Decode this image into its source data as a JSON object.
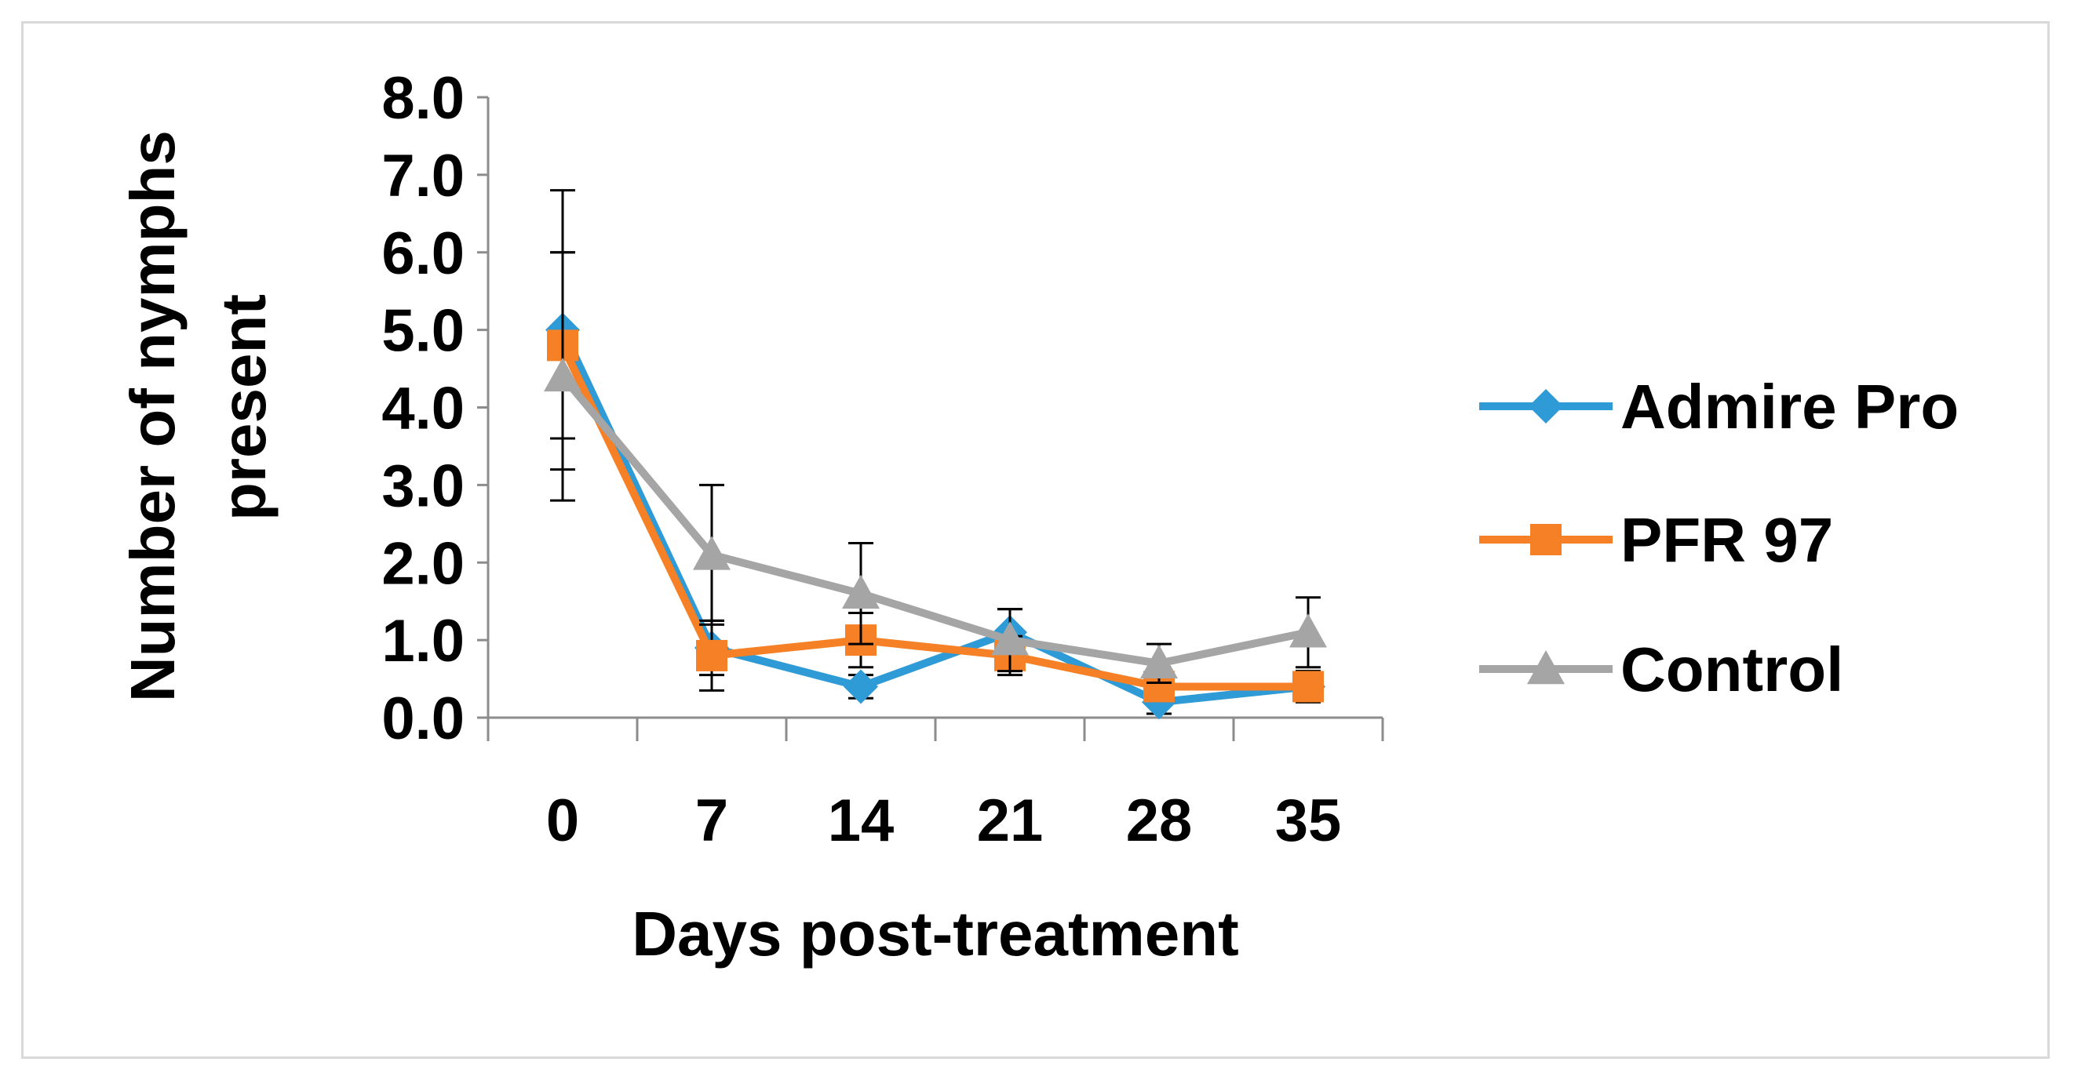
{
  "chart_data": {
    "type": "line",
    "title": "",
    "xlabel": "Days post-treatment",
    "ylabel_lines": [
      "Number of nymphs",
      "present"
    ],
    "categories": [
      "0",
      "7",
      "14",
      "21",
      "28",
      "35"
    ],
    "y_ticks": [
      "0.0",
      "1.0",
      "2.0",
      "3.0",
      "4.0",
      "5.0",
      "6.0",
      "7.0",
      "8.0"
    ],
    "ylim": [
      0,
      8
    ],
    "grid": false,
    "legend_position": "right",
    "error_bars": "upper and lower, black caps",
    "series": [
      {
        "name": "Admire Pro",
        "color": "#2e9ad6",
        "marker": "diamond",
        "values": [
          5.0,
          0.9,
          0.4,
          1.1,
          0.2,
          0.4
        ],
        "errors": [
          1.8,
          0.35,
          0.15,
          0.3,
          0.15,
          0.2
        ]
      },
      {
        "name": "PFR 97",
        "color": "#f58025",
        "marker": "square",
        "values": [
          4.8,
          0.8,
          1.0,
          0.8,
          0.4,
          0.4
        ],
        "errors": [
          1.2,
          0.45,
          0.35,
          0.25,
          0.15,
          0.2
        ]
      },
      {
        "name": "Control",
        "color": "#a5a5a5",
        "marker": "triangle",
        "values": [
          4.4,
          2.1,
          1.6,
          1.0,
          0.7,
          1.1
        ],
        "errors": [
          1.6,
          0.9,
          0.65,
          0.4,
          0.25,
          0.45
        ]
      }
    ]
  }
}
